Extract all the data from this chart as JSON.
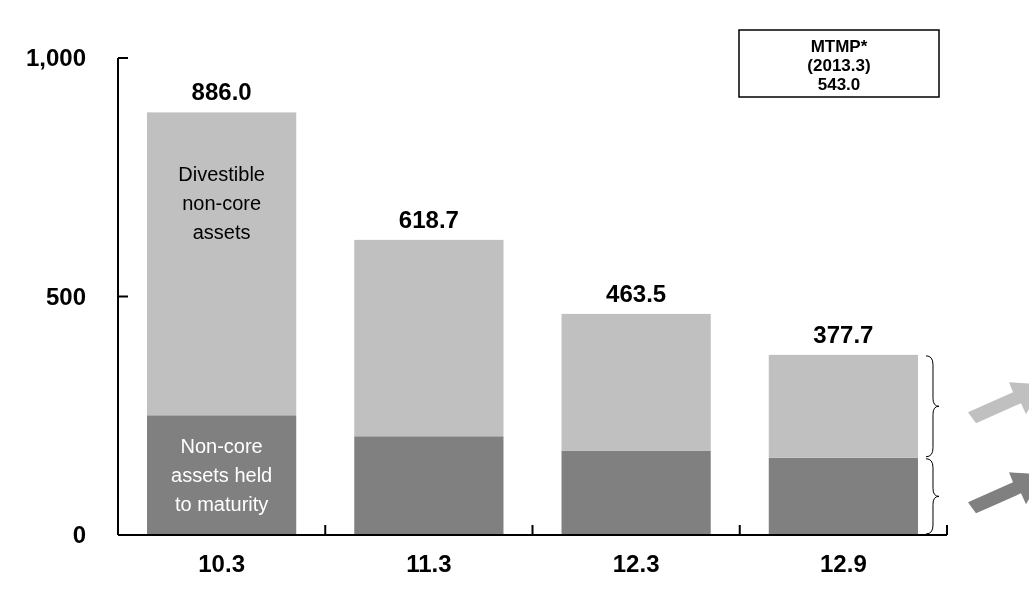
{
  "chart_data": {
    "type": "bar",
    "stacked": true,
    "categories": [
      "10.3",
      "11.3",
      "12.3",
      "12.9"
    ],
    "series": [
      {
        "name": "Non-core assets held to maturity",
        "color": "#808080",
        "values": [
          251,
          207,
          177,
          162
        ]
      },
      {
        "name": "Divestible non-core assets",
        "color": "#c0c0c0",
        "values": [
          635,
          411.7,
          286.5,
          215.7
        ]
      }
    ],
    "totals": [
      "886.0",
      "618.7",
      "463.5",
      "377.7"
    ],
    "ylim": [
      0,
      1000
    ],
    "yticks": [
      0,
      500,
      {
        "value": 1000,
        "label": "1,000"
      }
    ],
    "annotations": [
      "MTMP*\n(2013.3)\n543.0"
    ],
    "grid": false
  }
}
